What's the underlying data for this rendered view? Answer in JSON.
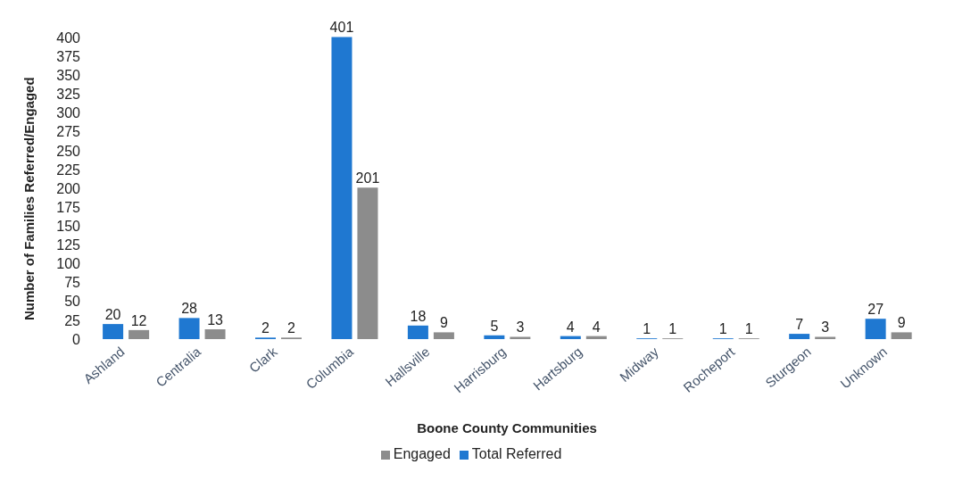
{
  "chart_data": {
    "type": "bar",
    "xlabel": "Boone County Communities",
    "ylabel": "Number of Families Referred/Engaged",
    "categories": [
      "Ashland",
      "Centralia",
      "Clark",
      "Columbia",
      "Hallsville",
      "Harrisburg",
      "Hartsburg",
      "Midway",
      "Rocheport",
      "Sturgeon",
      "Unknown"
    ],
    "series": [
      {
        "name": "Total Referred",
        "color": "#1f78d1",
        "values": [
          20,
          28,
          2,
          401,
          18,
          5,
          4,
          1,
          1,
          7,
          27
        ]
      },
      {
        "name": "Engaged",
        "color": "#8c8c8c",
        "values": [
          12,
          13,
          2,
          201,
          9,
          3,
          4,
          1,
          1,
          3,
          9
        ]
      }
    ],
    "ylim": [
      0,
      405
    ],
    "yticks": [
      0,
      25,
      50,
      75,
      100,
      125,
      150,
      175,
      200,
      225,
      250,
      275,
      300,
      325,
      350,
      375,
      400
    ],
    "grid": false,
    "legend": "bottom",
    "data_labels": true
  }
}
